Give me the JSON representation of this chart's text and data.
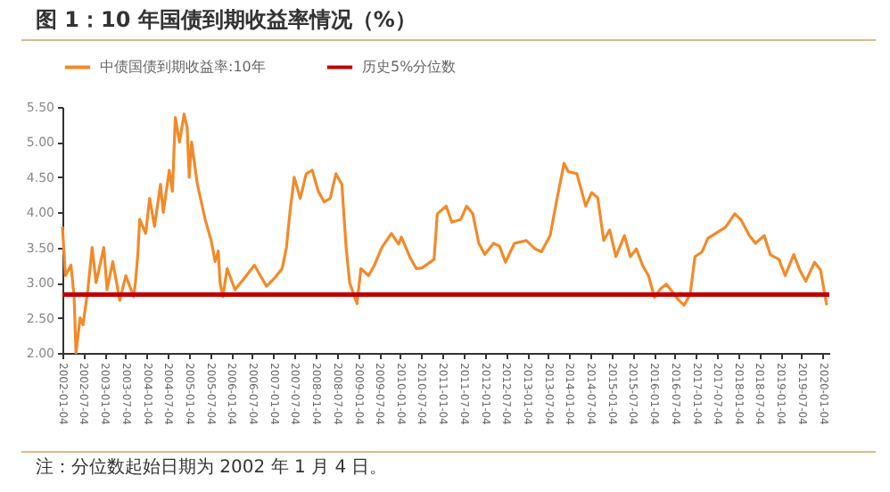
{
  "chart_data": {
    "type": "line",
    "title": "图 1：10 年国债到期收益率情况（%）",
    "annotations": [
      "注：分位数起始日期为 2002 年 1 月 4 日。"
    ],
    "legend": "top",
    "x": [
      "2002-01-04",
      "2002-01-30",
      "2002-03-19",
      "2002-04-15",
      "2002-05-01",
      "2002-06-06",
      "2002-07-01",
      "2002-08-12",
      "2002-09-18",
      "2002-10-22",
      "2002-12-28",
      "2003-01-25",
      "2003-03-15",
      "2003-05-15",
      "2003-07-06",
      "2003-09-12",
      "2003-09-27",
      "2003-10-18",
      "2003-11-03",
      "2003-12-25",
      "2004-01-28",
      "2004-03-10",
      "2004-05-01",
      "2004-05-25",
      "2004-07-16",
      "2004-08-12",
      "2004-09-06",
      "2004-10-12",
      "2004-11-21",
      "2004-12-18",
      "2005-01-04",
      "2005-01-25",
      "2005-03-16",
      "2005-05-22",
      "2005-07-13",
      "2005-08-16",
      "2005-09-12",
      "2005-09-28",
      "2005-10-22",
      "2005-11-28",
      "2006-02-04",
      "2006-04-19",
      "2006-07-22",
      "2006-09-12",
      "2006-11-04",
      "2007-01-04",
      "2007-03-19",
      "2007-04-25",
      "2007-05-25",
      "2007-07-01",
      "2007-08-22",
      "2007-10-13",
      "2007-12-04",
      "2008-01-25",
      "2008-03-16",
      "2008-05-07",
      "2008-06-26",
      "2008-08-16",
      "2008-09-22",
      "2008-10-22",
      "2008-12-25",
      "2009-01-28",
      "2009-04-04",
      "2009-05-25",
      "2009-07-28",
      "2009-10-19",
      "2009-12-19",
      "2010-01-13",
      "2010-03-31",
      "2010-05-22",
      "2010-07-10",
      "2010-10-22",
      "2010-11-19",
      "2011-02-04",
      "2011-03-25",
      "2011-06-10",
      "2011-07-31",
      "2011-09-22",
      "2011-11-13",
      "2012-01-04",
      "2012-03-19",
      "2012-05-10",
      "2012-07-01",
      "2012-09-16",
      "2012-12-28",
      "2013-03-15",
      "2013-05-07",
      "2013-07-22",
      "2013-09-12",
      "2013-11-19",
      "2013-12-25",
      "2014-03-10",
      "2014-05-25",
      "2014-07-16",
      "2014-09-06",
      "2014-10-28",
      "2014-12-19",
      "2015-02-10",
      "2015-04-25",
      "2015-06-16",
      "2015-08-07",
      "2015-09-28",
      "2015-11-19",
      "2016-01-10",
      "2016-03-01",
      "2016-04-22",
      "2016-06-13",
      "2016-08-01",
      "2016-09-22",
      "2016-11-13",
      "2016-12-25",
      "2017-02-25",
      "2017-04-16",
      "2017-07-01",
      "2017-09-16",
      "2017-12-04",
      "2018-01-25",
      "2018-04-10",
      "2018-06-01",
      "2018-08-16",
      "2018-10-07",
      "2018-12-22",
      "2019-02-13",
      "2019-04-28",
      "2019-06-19",
      "2019-08-10",
      "2019-10-25",
      "2019-12-16",
      "2020-01-13",
      "2020-02-07"
    ],
    "series": [
      {
        "name": "中债国债到期收益率:10年",
        "color": "#f28a2a",
        "values": [
          3.8,
          3.1,
          3.25,
          2.8,
          2.0,
          2.5,
          2.4,
          2.9,
          3.5,
          3.0,
          3.5,
          2.9,
          3.3,
          2.75,
          3.1,
          2.8,
          3.0,
          3.4,
          3.9,
          3.7,
          4.2,
          3.8,
          4.4,
          4.0,
          4.6,
          4.3,
          5.35,
          5.0,
          5.4,
          5.2,
          4.5,
          5.0,
          4.4,
          3.9,
          3.6,
          3.3,
          3.45,
          3.0,
          2.8,
          3.2,
          2.9,
          3.05,
          3.25,
          3.1,
          2.95,
          3.05,
          3.2,
          3.5,
          4.0,
          4.5,
          4.2,
          4.55,
          4.6,
          4.3,
          4.15,
          4.2,
          4.55,
          4.4,
          3.5,
          3.0,
          2.7,
          3.2,
          3.1,
          3.25,
          3.5,
          3.7,
          3.55,
          3.65,
          3.35,
          3.2,
          3.21,
          3.33,
          3.98,
          4.09,
          3.86,
          3.9,
          4.09,
          3.98,
          3.56,
          3.4,
          3.56,
          3.52,
          3.29,
          3.56,
          3.6,
          3.48,
          3.44,
          3.67,
          4.13,
          4.7,
          4.58,
          4.55,
          4.09,
          4.28,
          4.21,
          3.6,
          3.75,
          3.37,
          3.67,
          3.37,
          3.48,
          3.25,
          3.1,
          2.79,
          2.91,
          2.98,
          2.87,
          2.76,
          2.68,
          2.83,
          3.37,
          3.44,
          3.63,
          3.71,
          3.79,
          3.98,
          3.9,
          3.67,
          3.56,
          3.67,
          3.4,
          3.33,
          3.1,
          3.4,
          3.18,
          3.02,
          3.29,
          3.18,
          2.91,
          2.68
        ]
      }
    ],
    "ref_lines": [
      {
        "axis": "y",
        "value": 2.83,
        "label": "历史5%分位数",
        "color": "#c00000"
      }
    ],
    "xlim": [
      "2002-01-04",
      "2020-03-01"
    ],
    "xticks": [
      "2002-01-04",
      "2002-07-04",
      "2003-01-04",
      "2003-07-04",
      "2004-01-04",
      "2004-07-04",
      "2005-01-04",
      "2005-07-04",
      "2006-01-04",
      "2006-07-04",
      "2007-01-04",
      "2007-07-04",
      "2008-01-04",
      "2008-07-04",
      "2009-01-04",
      "2009-07-04",
      "2010-01-04",
      "2010-07-04",
      "2011-01-04",
      "2011-07-04",
      "2012-01-04",
      "2012-07-04",
      "2013-01-04",
      "2013-07-04",
      "2014-01-04",
      "2014-07-04",
      "2015-01-04",
      "2015-07-04",
      "2016-01-04",
      "2016-07-04",
      "2017-01-04",
      "2017-07-04",
      "2018-01-04",
      "2018-07-04",
      "2019-01-04",
      "2019-07-04",
      "2020-01-04"
    ],
    "ylim": [
      2.0,
      5.5
    ],
    "yticks": [
      {
        "value": 2,
        "label": "2.00"
      },
      {
        "value": 2.5,
        "label": "2.50"
      },
      {
        "value": 3,
        "label": "3.00"
      },
      {
        "value": 3.5,
        "label": "3.50"
      },
      {
        "value": 4,
        "label": "4.00"
      },
      {
        "value": 4.5,
        "label": "4.50"
      },
      {
        "value": 5,
        "label": "5.00"
      },
      {
        "value": 5.5,
        "label": "5.50"
      }
    ]
  }
}
